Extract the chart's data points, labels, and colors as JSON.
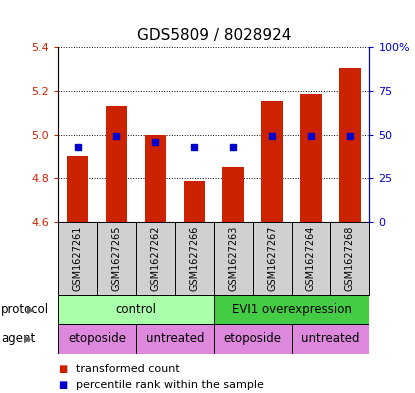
{
  "title": "GDS5809 / 8028924",
  "samples": [
    "GSM1627261",
    "GSM1627265",
    "GSM1627262",
    "GSM1627266",
    "GSM1627263",
    "GSM1627267",
    "GSM1627264",
    "GSM1627268"
  ],
  "bar_values": [
    4.9,
    5.13,
    5.0,
    4.79,
    4.85,
    5.155,
    5.185,
    5.305
  ],
  "dot_values": [
    4.945,
    4.995,
    4.965,
    4.945,
    4.945,
    4.995,
    4.995,
    4.995
  ],
  "ylim": [
    4.6,
    5.4
  ],
  "yticks": [
    4.6,
    4.8,
    5.0,
    5.2,
    5.4
  ],
  "right_yticks": [
    0,
    25,
    50,
    75,
    100
  ],
  "right_yticklabels": [
    "0",
    "25",
    "50",
    "75",
    "100%"
  ],
  "bar_color": "#cc2200",
  "dot_color": "#0000cc",
  "bar_bottom": 4.6,
  "protocol_items": [
    {
      "label": "control",
      "start": 0,
      "end": 3,
      "color": "#aaffaa"
    },
    {
      "label": "EVI1 overexpression",
      "start": 4,
      "end": 7,
      "color": "#44cc44"
    }
  ],
  "agent_items": [
    {
      "label": "etoposide",
      "start": 0,
      "end": 1,
      "color": "#dd88dd"
    },
    {
      "label": "untreated",
      "start": 2,
      "end": 3,
      "color": "#dd88dd"
    },
    {
      "label": "etoposide",
      "start": 4,
      "end": 5,
      "color": "#dd88dd"
    },
    {
      "label": "untreated",
      "start": 6,
      "end": 7,
      "color": "#dd88dd"
    }
  ],
  "legend_red_label": "transformed count",
  "legend_blue_label": "percentile rank within the sample",
  "xlabel_protocol": "protocol",
  "xlabel_agent": "agent",
  "title_fontsize": 11,
  "tick_fontsize": 8,
  "label_fontsize": 8.5,
  "row_label_fontsize": 8.5,
  "sample_fontsize": 7,
  "bar_width": 0.55,
  "gray_bg": "#d0d0d0"
}
